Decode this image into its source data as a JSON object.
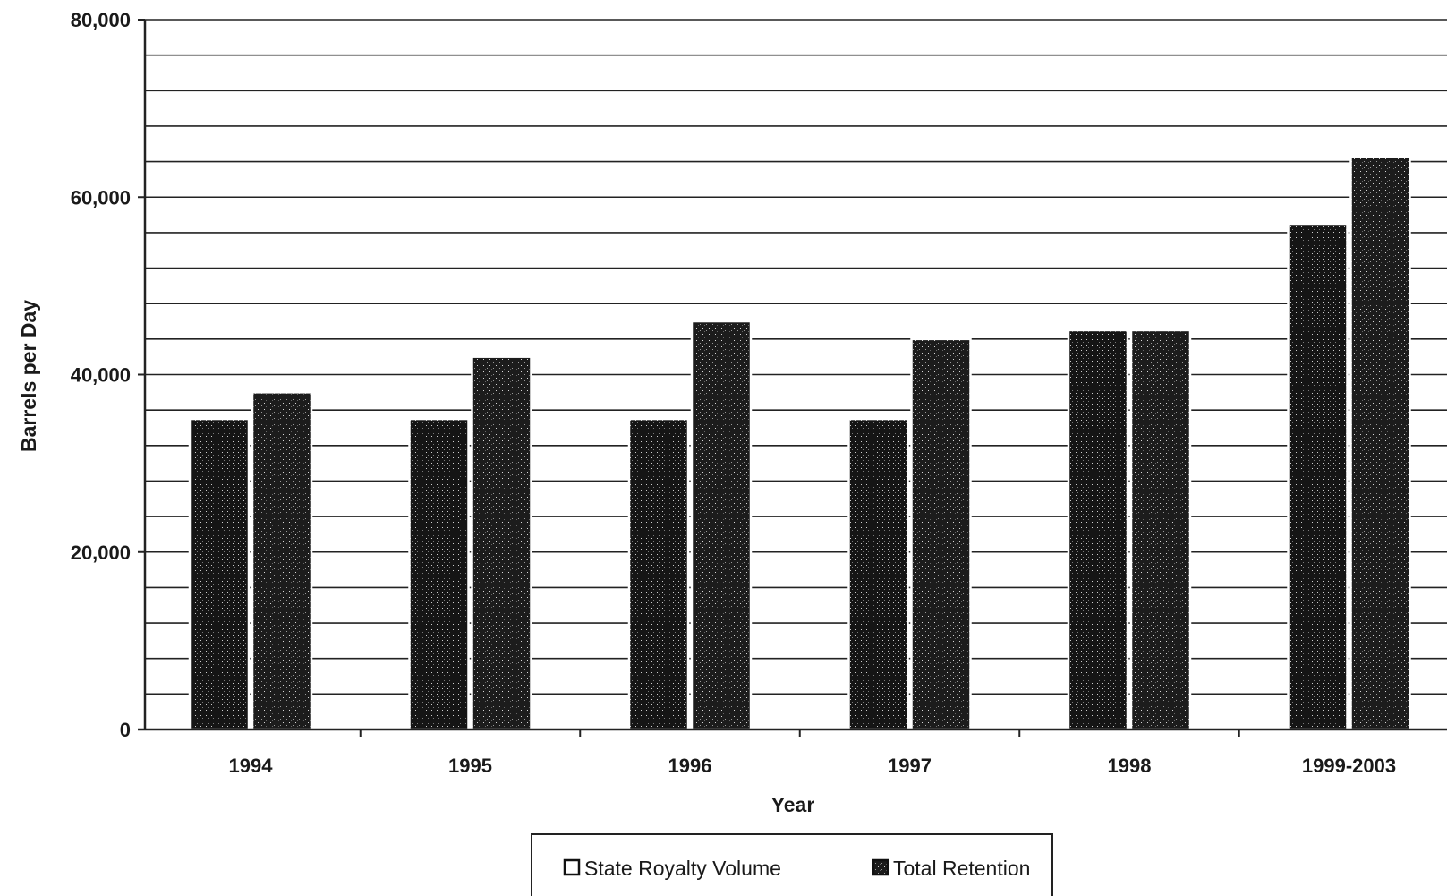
{
  "chart_data": {
    "type": "bar",
    "categories": [
      "1994",
      "1995",
      "1996",
      "1997",
      "1998",
      "1999-2003"
    ],
    "series": [
      {
        "name": "State Royalty Volume",
        "values": [
          35000,
          35000,
          35000,
          35000,
          45000,
          57000
        ]
      },
      {
        "name": "Total Retention",
        "values": [
          38000,
          42000,
          46000,
          44000,
          45000,
          64500
        ]
      }
    ],
    "title": "",
    "xlabel": "Year",
    "ylabel": "Barrels per Day",
    "ylim": [
      0,
      80000
    ],
    "yticks": [
      0,
      20000,
      40000,
      60000,
      80000
    ],
    "ytick_labels": [
      "0",
      "20,000",
      "40,000",
      "60,000",
      "80,000"
    ],
    "minor_gridline_step": 4000,
    "grid": true,
    "legend_position": "bottom-center",
    "colors": {
      "bar": "#1c1c1c",
      "grid": "#222222",
      "axis": "#222222"
    }
  }
}
